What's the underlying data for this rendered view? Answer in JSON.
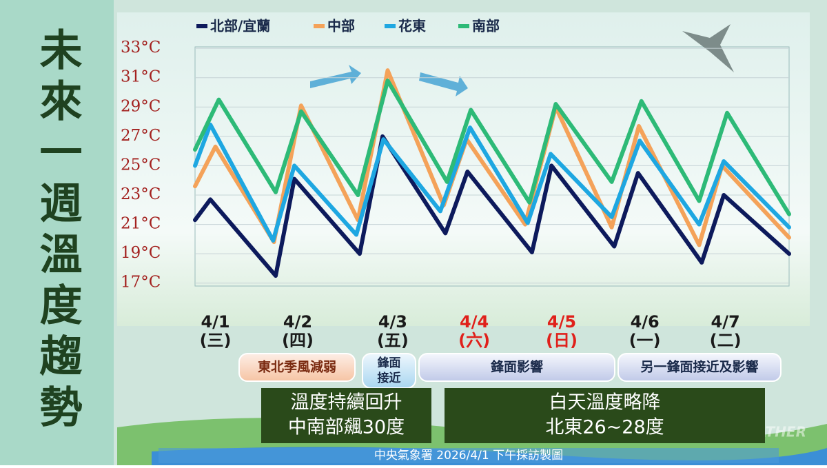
{
  "chart_data": {
    "type": "line",
    "title": "未來一週溫度趨勢",
    "xlim": [
      0,
      7
    ],
    "ylim": [
      16.8,
      33.1
    ],
    "yticks": [
      {
        "value": 17,
        "label": "17°C"
      },
      {
        "value": 19,
        "label": "19°C"
      },
      {
        "value": 21,
        "label": "21°C"
      },
      {
        "value": 23,
        "label": "23°C"
      },
      {
        "value": 25,
        "label": "25°C"
      },
      {
        "value": 27,
        "label": "27°C"
      },
      {
        "value": 29,
        "label": "29°C"
      },
      {
        "value": 31,
        "label": "31°C"
      },
      {
        "value": 33,
        "label": "33°C"
      }
    ],
    "xticks": [
      {
        "value": 0.24,
        "label": "4/1"
      },
      {
        "value": 1.21,
        "label": "4/2"
      },
      {
        "value": 2.33,
        "label": "4/3"
      },
      {
        "value": 3.29,
        "label": "4/4"
      },
      {
        "value": 4.32,
        "label": "4/5"
      },
      {
        "value": 5.3,
        "label": "4/6"
      },
      {
        "value": 6.25,
        "label": "4/7"
      }
    ],
    "weekdays": [
      "(三)",
      "(四)",
      "(五)",
      "(六)",
      "(日)",
      "(一)",
      "(二)"
    ],
    "tick_colors": [
      "#1a1a1a",
      "#1a1a1a",
      "#1a1a1a",
      "#e0201b",
      "#e0201b",
      "#1a1a1a",
      "#1a1a1a"
    ],
    "grid": true,
    "series": [
      {
        "name": "北部/宜蘭",
        "color": "#0d1a5c",
        "x": [
          0,
          0.18,
          0.95,
          1.17,
          1.94,
          2.21,
          2.95,
          3.21,
          3.97,
          4.2,
          4.94,
          5.22,
          5.97,
          6.23,
          7
        ],
        "values": [
          21.3,
          22.7,
          17.5,
          24.1,
          19.0,
          27.0,
          20.4,
          24.6,
          19.1,
          25.0,
          19.5,
          24.5,
          18.4,
          23.0,
          19.0
        ]
      },
      {
        "name": "中部",
        "color": "#f4a259",
        "x": [
          0,
          0.24,
          0.93,
          1.25,
          1.92,
          2.27,
          2.93,
          3.2,
          3.89,
          4.25,
          4.91,
          5.23,
          5.94,
          6.21,
          7
        ],
        "values": [
          23.6,
          26.3,
          19.8,
          29.1,
          21.3,
          31.5,
          22.3,
          26.8,
          21.0,
          29.0,
          20.8,
          27.7,
          19.6,
          25.0,
          20.1
        ]
      },
      {
        "name": "花東",
        "color": "#1ea7e1",
        "x": [
          0,
          0.18,
          0.92,
          1.17,
          1.9,
          2.22,
          2.89,
          3.24,
          3.92,
          4.19,
          4.91,
          5.24,
          5.94,
          6.23,
          7
        ],
        "values": [
          25.0,
          27.8,
          19.9,
          25.0,
          20.3,
          26.8,
          21.9,
          27.6,
          21.1,
          25.8,
          21.5,
          26.7,
          21.0,
          25.3,
          20.8
        ]
      },
      {
        "name": "南部",
        "color": "#2dba77",
        "x": [
          0,
          0.28,
          0.95,
          1.25,
          1.92,
          2.27,
          2.97,
          3.25,
          3.94,
          4.25,
          4.91,
          5.26,
          5.94,
          6.27,
          7
        ],
        "values": [
          26.1,
          29.5,
          23.2,
          28.7,
          23.0,
          30.8,
          23.9,
          28.8,
          22.5,
          29.2,
          23.9,
          29.4,
          22.6,
          28.6,
          21.7
        ]
      }
    ],
    "phases": [
      {
        "lines": [
          "東北季風減弱"
        ]
      },
      {
        "lines": [
          "鋒面",
          "接近"
        ]
      },
      {
        "lines": [
          "鋒面影響"
        ]
      },
      {
        "lines": [
          "另一鋒面接近及影響"
        ]
      }
    ],
    "notes": [
      {
        "lines": [
          "溫度持續回升",
          "中南部飆30度"
        ]
      },
      {
        "lines": [
          "白天溫度略降",
          "北東26~28度"
        ]
      }
    ],
    "footer": "中央氣象署 2026/4/1 下午採訪製圖",
    "watermark": "WEATHER"
  }
}
